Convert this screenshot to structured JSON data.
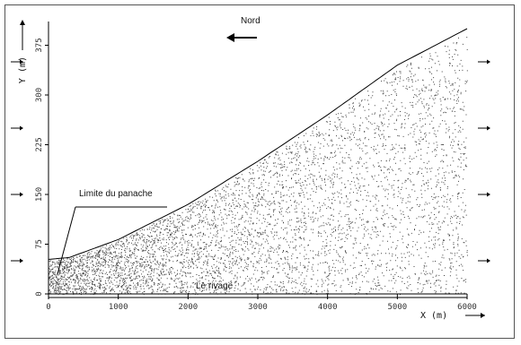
{
  "chart_data": {
    "type": "scatter",
    "title": "",
    "xlabel": "X (m)",
    "ylabel": "Y (m)",
    "xlim": [
      0,
      6000
    ],
    "ylim": [
      0,
      400
    ],
    "x_ticks": [
      "0",
      "1000",
      "2000",
      "3000",
      "4000",
      "5000",
      "6000"
    ],
    "y_ticks": [
      "0",
      "75",
      "150",
      "225",
      "300",
      "375"
    ],
    "plume_limit": {
      "label": "Limite du panache",
      "x": [
        0,
        300,
        1000,
        2000,
        3000,
        4000,
        5000,
        6000
      ],
      "y": [
        52,
        55,
        82,
        135,
        200,
        270,
        345,
        400
      ]
    },
    "shoreline_label": "Le rivage",
    "north_label": "Nord",
    "x_axis_scale": "0 to 6000 m",
    "y_axis_scale": "0 to 400 m",
    "grid": false,
    "side_arrows": "pointing right on both sides at y = 50, 150, 250, 350"
  }
}
